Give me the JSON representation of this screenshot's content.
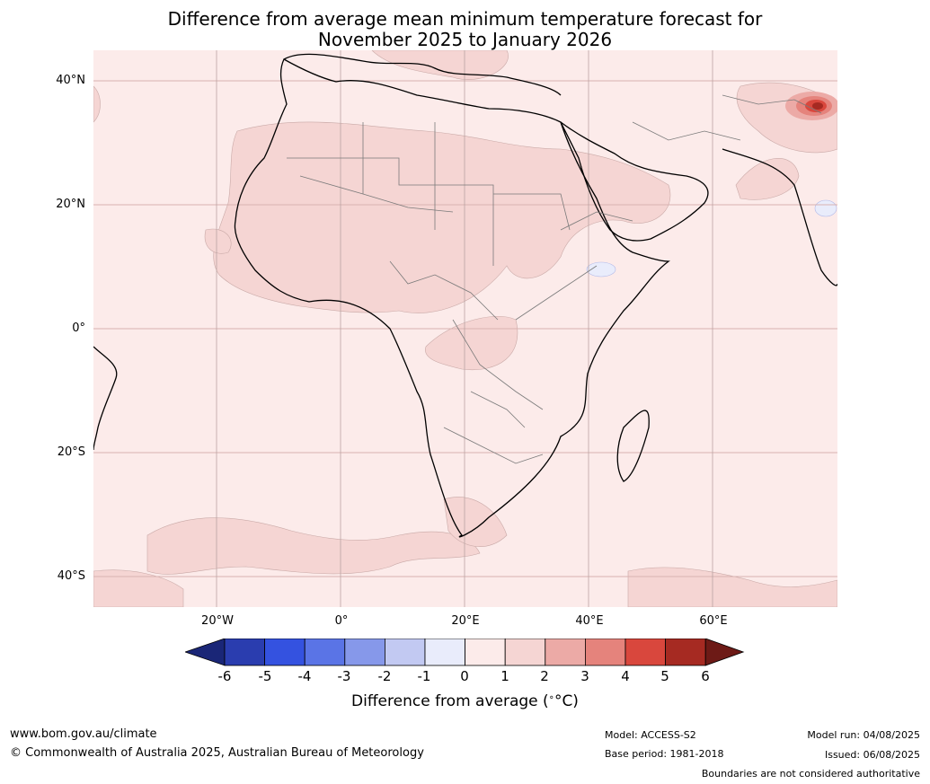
{
  "title": {
    "line1": "Difference from average mean minimum temperature forecast for",
    "line2": "November 2025 to January 2026"
  },
  "map": {
    "lat_labels": [
      "40°N",
      "20°N",
      "0°",
      "20°S",
      "40°S"
    ],
    "lon_labels": [
      "20°W",
      "0°",
      "20°E",
      "40°E",
      "60°E"
    ],
    "colors": {
      "ocean_land_base": "#fcebea",
      "anomaly_1_2": "#f5d5d3",
      "anomaly_2_3": "#ecaaa6",
      "anomaly_3_4": "#e5837c",
      "anomaly_4_5": "#d9473d",
      "anomaly_5_6": "#a62a22",
      "negative_0_1": "#e9ecfb",
      "coastline": "#000000",
      "borders": "#7a7a7a",
      "gridlines": "#d9b2b0"
    }
  },
  "colorbar": {
    "ticks": [
      "-6",
      "-5",
      "-4",
      "-3",
      "-2",
      "-1",
      "0",
      "1",
      "2",
      "3",
      "4",
      "5",
      "6"
    ],
    "colors": [
      "#1a2677",
      "#2a3daf",
      "#3452e0",
      "#5a74e6",
      "#8698ea",
      "#c2c9f2",
      "#e9ecfb",
      "#fcebea",
      "#f5d5d3",
      "#ecaaa6",
      "#e5837c",
      "#d9473d",
      "#a62a22",
      "#6d1a16"
    ],
    "label": "Difference from average (",
    "label_unit": "°C)"
  },
  "footer": {
    "website": "www.bom.gov.au/climate",
    "copyright": "© Commonwealth of Australia 2025, Australian Bureau of Meteorology",
    "model": "Model: ACCESS-S2",
    "base_period": "Base period: 1981-2018",
    "model_run": "Model run: 04/08/2025",
    "issued": "Issued: 06/08/2025",
    "disclaimer": "Boundaries are not considered authoritative"
  }
}
